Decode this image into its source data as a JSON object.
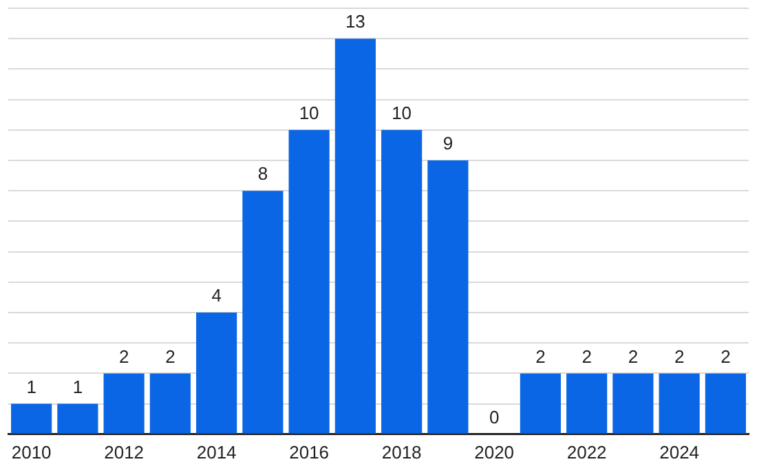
{
  "chart_data": {
    "type": "bar",
    "categories": [
      "2010",
      null,
      "2012",
      null,
      "2014",
      null,
      "2016",
      null,
      "2018",
      null,
      "2020",
      null,
      "2022",
      null,
      "2024",
      null
    ],
    "values": [
      1,
      1,
      2,
      2,
      4,
      8,
      10,
      13,
      10,
      9,
      0,
      2,
      2,
      2,
      2,
      2
    ],
    "color": "#0a66e4",
    "ylim": [
      0,
      14
    ],
    "yticks": [
      {
        "value": 0,
        "label": null
      },
      {
        "value": 1,
        "label": null
      },
      {
        "value": 2,
        "label": null
      },
      {
        "value": 3,
        "label": null
      },
      {
        "value": 4,
        "label": null
      },
      {
        "value": 5,
        "label": null
      },
      {
        "value": 6,
        "label": null
      },
      {
        "value": 7,
        "label": null
      },
      {
        "value": 8,
        "label": null
      },
      {
        "value": 9,
        "label": null
      },
      {
        "value": 10,
        "label": null
      },
      {
        "value": 11,
        "label": null
      },
      {
        "value": 12,
        "label": null
      },
      {
        "value": 13,
        "label": null
      },
      {
        "value": 14,
        "label": null
      }
    ],
    "grid": "y",
    "tick_labels": "x",
    "data_labels": true,
    "legend": false
  }
}
